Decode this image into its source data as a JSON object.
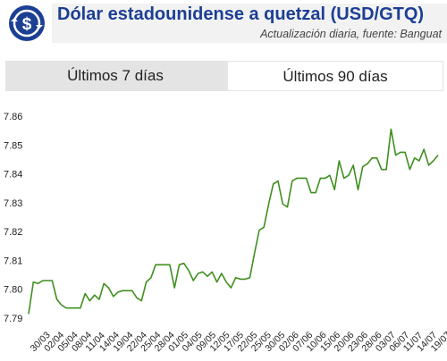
{
  "header": {
    "title": "Dólar estadounidense a quetzal (USD/GTQ)",
    "subtitle": "Actualización diaria, fuente: Banguat",
    "logo_icon": "dollar-exchange-icon"
  },
  "tabs": [
    {
      "label": "Últimos 7 días",
      "active": false
    },
    {
      "label": "Últimos 90 días",
      "active": true
    }
  ],
  "colors": {
    "title": "#1c3f94",
    "line": "#3f8f1f",
    "logo": "#1c3f94"
  },
  "chart_data": {
    "type": "line",
    "title": "",
    "xlabel": "",
    "ylabel": "",
    "ylim": [
      7.79,
      7.86
    ],
    "yticks": [
      "7.79",
      "7.80",
      "7.81",
      "7.82",
      "7.83",
      "7.84",
      "7.85",
      "7.86"
    ],
    "grid": false,
    "xtick_labels": [
      "30/03",
      "02/04",
      "05/04",
      "08/04",
      "11/04",
      "14/04",
      "19/04",
      "22/04",
      "25/04",
      "28/04",
      "01/05",
      "04/05",
      "09/05",
      "12/05",
      "17/05",
      "22/05",
      "25/05",
      "30/05",
      "02/06",
      "07/06",
      "10/06",
      "15/06",
      "20/06",
      "23/06",
      "28/06",
      "03/07",
      "06/07",
      "11/07",
      "14/07",
      "19/07"
    ],
    "series": [
      {
        "values": [
          7.7915,
          7.8025,
          7.802,
          7.803,
          7.803,
          7.803,
          7.7965,
          7.7945,
          7.7935,
          7.7935,
          7.7935,
          7.7935,
          7.7985,
          7.796,
          7.798,
          7.7965,
          7.802,
          7.8005,
          7.7975,
          7.799,
          7.7995,
          7.7995,
          7.7995,
          7.797,
          7.796,
          7.8025,
          7.804,
          7.8085,
          7.8085,
          7.8085,
          7.8085,
          7.8005,
          7.8085,
          7.809,
          7.8065,
          7.803,
          7.8055,
          7.806,
          7.8045,
          7.806,
          7.8025,
          7.8055,
          7.8025,
          7.8005,
          7.804,
          7.8035,
          7.8035,
          7.804,
          7.8125,
          7.8205,
          7.8215,
          7.8295,
          7.8365,
          7.8375,
          7.8295,
          7.8285,
          7.8375,
          7.8385,
          7.8385,
          7.8385,
          7.8335,
          7.8335,
          7.8385,
          7.8385,
          7.8395,
          7.8345,
          7.8445,
          7.8385,
          7.8395,
          7.843,
          7.8345,
          7.8425,
          7.8435,
          7.8455,
          7.8455,
          7.8415,
          7.8415,
          7.8555,
          7.8465,
          7.8475,
          7.8475,
          7.8415,
          7.8455,
          7.8445,
          7.8485,
          7.843,
          7.8445,
          7.8465
        ]
      }
    ]
  }
}
